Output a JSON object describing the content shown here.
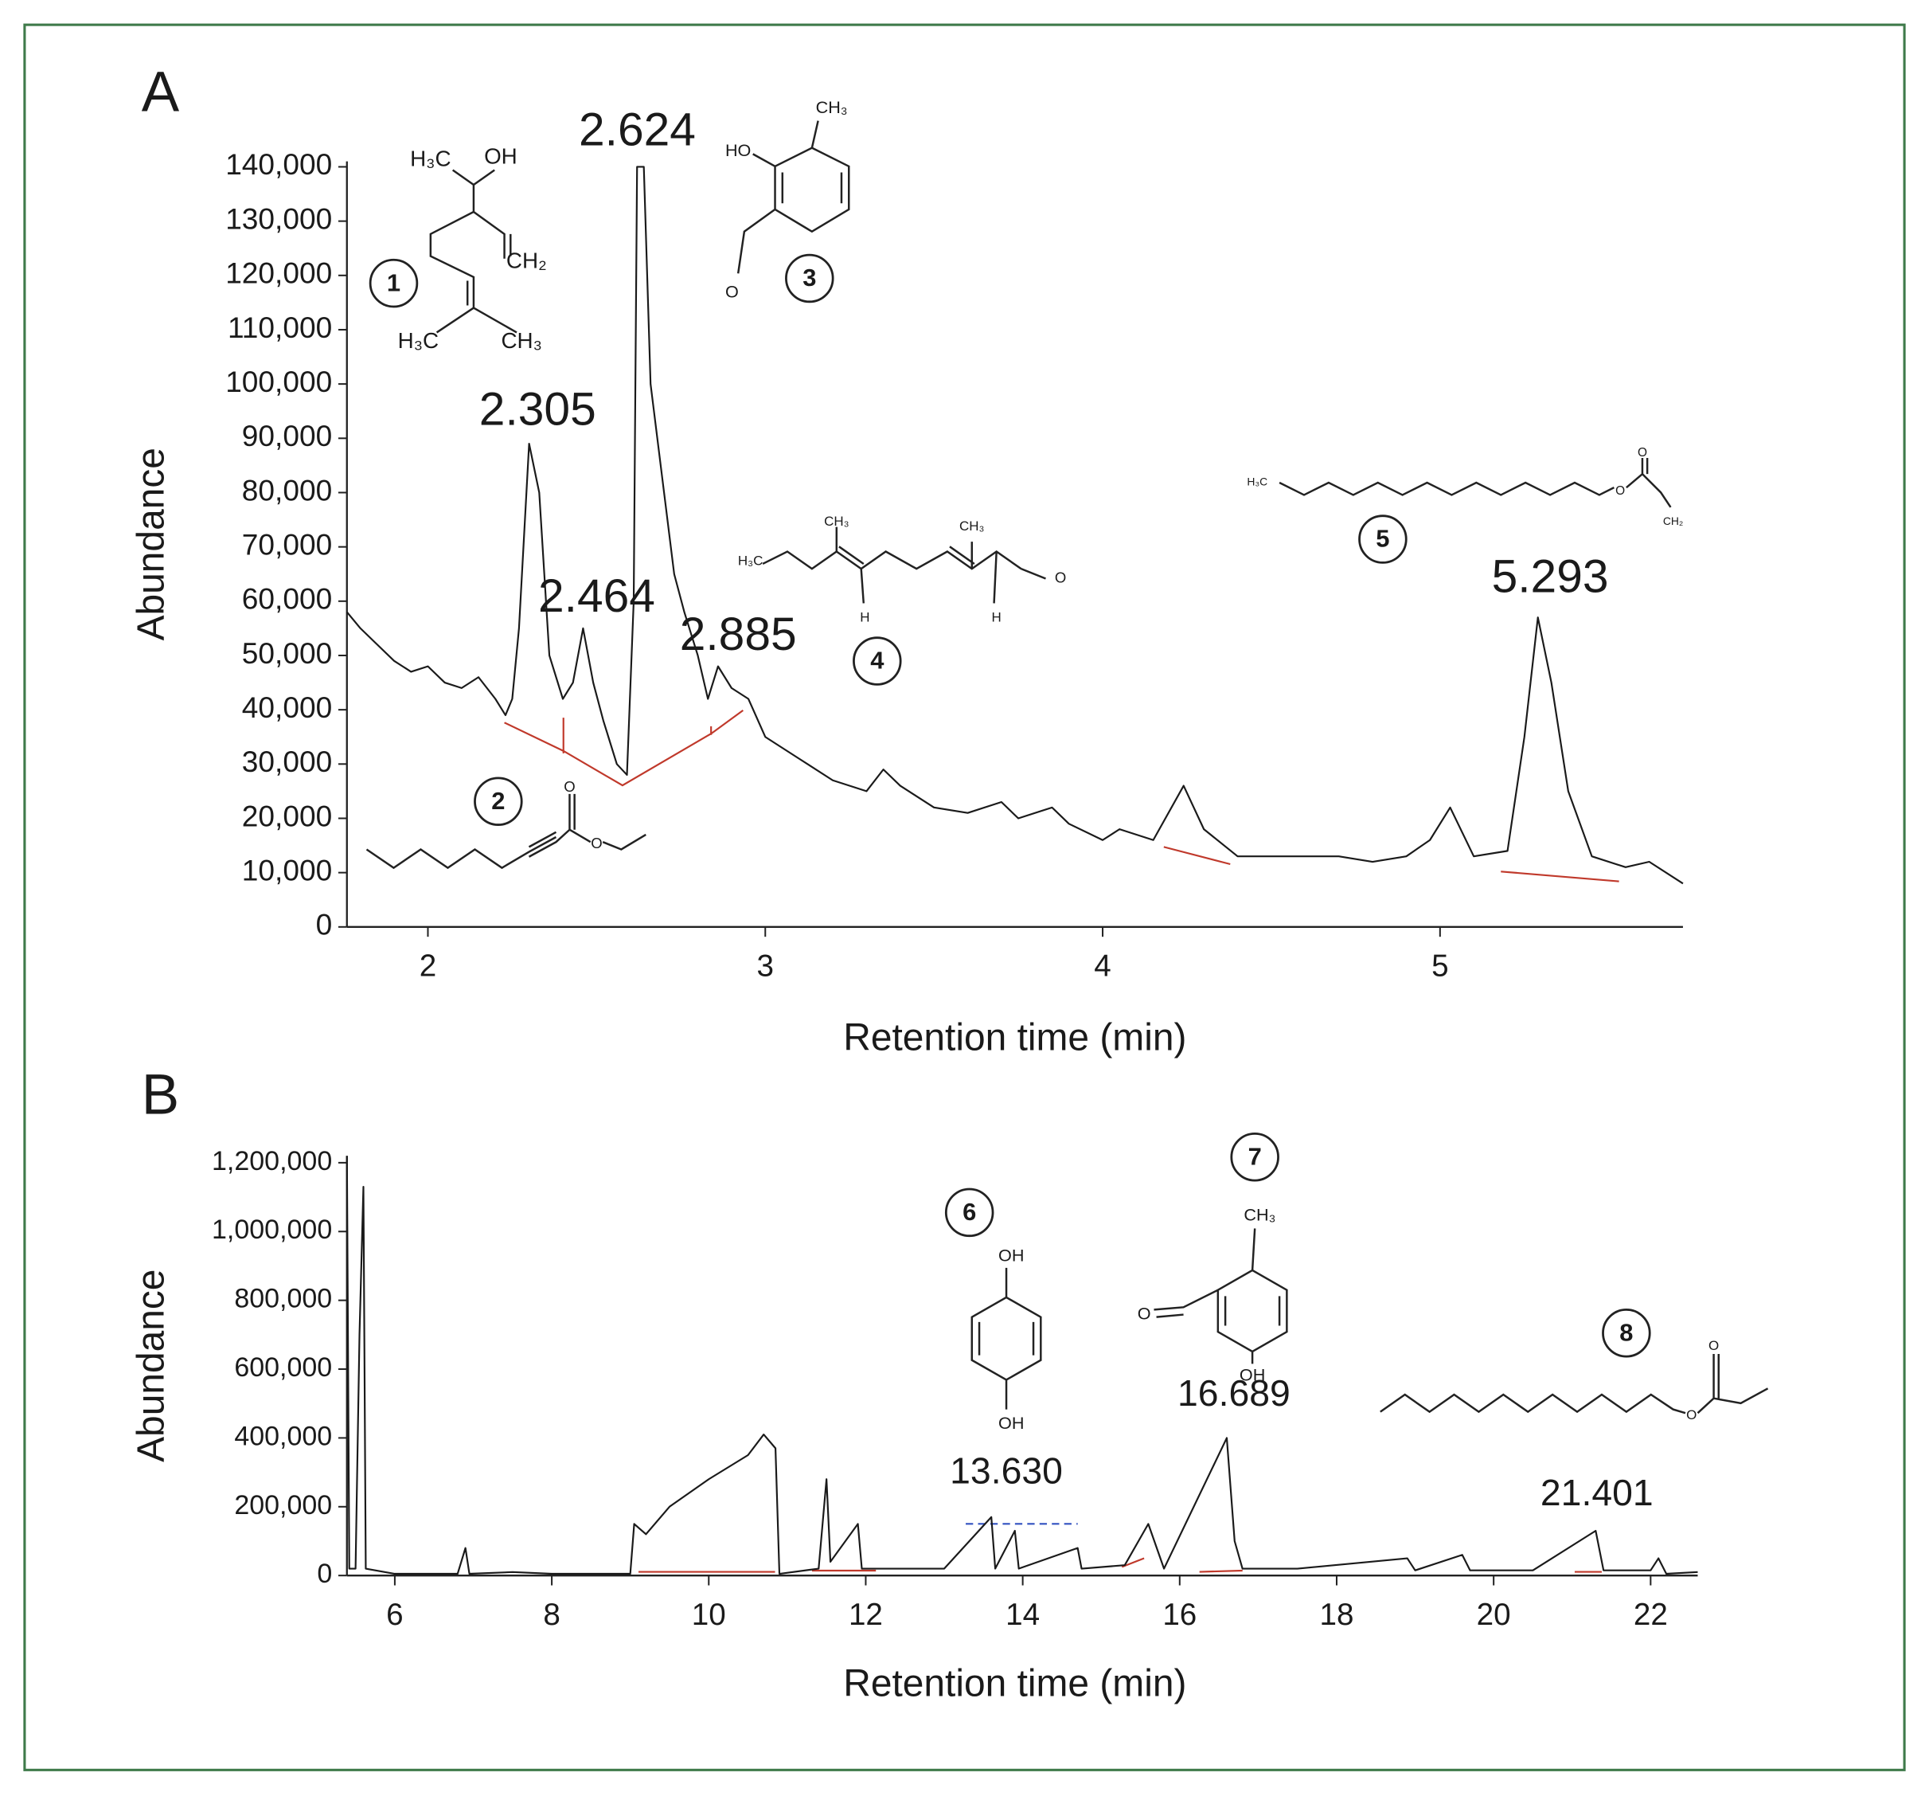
{
  "chart_data": [
    {
      "type": "line",
      "panel": "A",
      "xlabel": "Retention time (min)",
      "ylabel": "Abundance",
      "xlim": [
        1.76,
        5.72
      ],
      "ylim": [
        0,
        141000
      ],
      "xticks": [
        2,
        3,
        4,
        5
      ],
      "yticks": [
        0,
        {
          "value": 10000,
          "label": "10,000"
        },
        {
          "value": 20000,
          "label": "20,000"
        },
        {
          "value": 30000,
          "label": "30,000"
        },
        {
          "value": 40000,
          "label": "40,000"
        },
        {
          "value": 50000,
          "label": "50,000"
        },
        {
          "value": 60000,
          "label": "60,000"
        },
        {
          "value": 70000,
          "label": "70,000"
        },
        {
          "value": 80000,
          "label": "80,000"
        },
        {
          "value": 90000,
          "label": "90,000"
        },
        {
          "value": 100000,
          "label": "100,000"
        },
        {
          "value": 110000,
          "label": "110,000"
        },
        {
          "value": 120000,
          "label": "120,000"
        },
        {
          "value": 130000,
          "label": "130,000"
        },
        {
          "value": 140000,
          "label": "140,000"
        }
      ],
      "color": "#1a1a1a",
      "x": [
        1.76,
        1.8,
        1.85,
        1.9,
        1.95,
        2.0,
        2.05,
        2.1,
        2.15,
        2.2,
        2.23,
        2.25,
        2.27,
        2.3,
        2.33,
        2.36,
        2.4,
        2.43,
        2.46,
        2.49,
        2.52,
        2.56,
        2.59,
        2.61,
        2.62,
        2.64,
        2.66,
        2.7,
        2.73,
        2.76,
        2.8,
        2.83,
        2.86,
        2.9,
        2.95,
        3.0,
        3.1,
        3.2,
        3.3,
        3.35,
        3.4,
        3.5,
        3.6,
        3.7,
        3.75,
        3.85,
        3.9,
        4.0,
        4.05,
        4.15,
        4.24,
        4.3,
        4.4,
        4.5,
        4.6,
        4.7,
        4.8,
        4.9,
        4.97,
        5.03,
        5.1,
        5.2,
        5.25,
        5.29,
        5.33,
        5.38,
        5.45,
        5.55,
        5.62,
        5.72
      ],
      "values": [
        58000,
        55000,
        52000,
        49000,
        47000,
        48000,
        45000,
        44000,
        46000,
        42000,
        39000,
        42000,
        55000,
        89000,
        80000,
        50000,
        42000,
        45000,
        55000,
        45000,
        38000,
        30000,
        28000,
        60000,
        140000,
        140000,
        100000,
        80000,
        65000,
        58000,
        50000,
        42000,
        48000,
        44000,
        42000,
        35000,
        31000,
        27000,
        25000,
        29000,
        26000,
        22000,
        21000,
        23000,
        20000,
        22000,
        19000,
        16000,
        18000,
        16000,
        26000,
        18000,
        13000,
        13000,
        13000,
        13000,
        12000,
        13000,
        16000,
        22000,
        13000,
        14000,
        35000,
        57000,
        45000,
        25000,
        13000,
        11000,
        12000,
        8000
      ],
      "annotations": [
        "2.305",
        "2.624",
        "2.464",
        "2.885",
        "5.293"
      ],
      "structures": [
        {
          "id": "1",
          "labels": [
            "H₃C",
            "OH",
            "CH₂",
            "H₃C",
            "CH₃"
          ]
        },
        {
          "id": "2",
          "labels": [
            "O",
            "O"
          ]
        },
        {
          "id": "3",
          "labels": [
            "HO",
            "CH₃",
            "O"
          ]
        },
        {
          "id": "4",
          "labels": [
            "H₃C",
            "CH₃",
            "CH₃",
            "H",
            "H",
            "O"
          ]
        },
        {
          "id": "5",
          "labels": [
            "H₃C",
            "O",
            "O",
            "CH₂"
          ]
        }
      ]
    },
    {
      "type": "line",
      "panel": "B",
      "xlabel": "Retention time (min)",
      "ylabel": "Abundance",
      "xlim": [
        5.39,
        22.6
      ],
      "ylim": [
        0,
        1220000
      ],
      "xticks": [
        6,
        8,
        10,
        12,
        14,
        16,
        18,
        20,
        22
      ],
      "yticks": [
        0,
        {
          "value": 200000,
          "label": "200,000"
        },
        {
          "value": 400000,
          "label": "400,000"
        },
        {
          "value": 600000,
          "label": "600,000"
        },
        {
          "value": 800000,
          "label": "800,000"
        },
        {
          "value": 1000000,
          "label": "1,000,000"
        },
        {
          "value": 1200000,
          "label": "1,200,000"
        }
      ],
      "color": "#1a1a1a",
      "x": [
        5.39,
        5.42,
        5.5,
        5.55,
        5.6,
        5.63,
        6.0,
        6.8,
        6.9,
        6.95,
        7.5,
        8.0,
        9.0,
        9.05,
        9.2,
        9.5,
        10.0,
        10.5,
        10.7,
        10.85,
        10.9,
        11.4,
        11.5,
        11.55,
        11.9,
        11.95,
        12.5,
        13.0,
        13.6,
        13.65,
        13.9,
        13.95,
        14.7,
        14.75,
        15.3,
        15.6,
        15.8,
        16.6,
        16.7,
        16.8,
        17.5,
        18.9,
        19.0,
        19.6,
        19.7,
        20.5,
        21.3,
        21.4,
        22.0,
        22.1,
        22.2,
        22.6
      ],
      "values": [
        1220000,
        20000,
        20000,
        700000,
        1130000,
        20000,
        5000,
        5000,
        80000,
        5000,
        10000,
        5000,
        5000,
        150000,
        120000,
        200000,
        280000,
        350000,
        410000,
        370000,
        5000,
        20000,
        280000,
        40000,
        150000,
        20000,
        20000,
        20000,
        170000,
        20000,
        130000,
        20000,
        80000,
        20000,
        30000,
        150000,
        20000,
        400000,
        100000,
        20000,
        20000,
        50000,
        15000,
        60000,
        15000,
        15000,
        130000,
        15000,
        15000,
        50000,
        5000,
        10000
      ],
      "annotations": [
        "13.630",
        "16.689",
        "21.401"
      ],
      "structures": [
        {
          "id": "6",
          "labels": [
            "OH",
            "OH"
          ]
        },
        {
          "id": "7",
          "labels": [
            "CH₃",
            "O",
            "OH"
          ]
        },
        {
          "id": "8",
          "labels": [
            "O",
            "O"
          ]
        }
      ]
    }
  ]
}
